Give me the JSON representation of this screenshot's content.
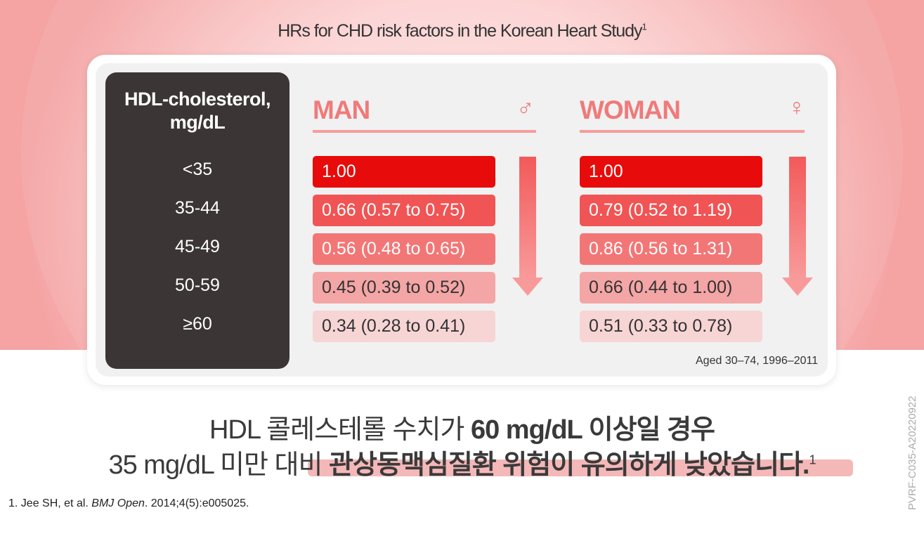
{
  "title": {
    "text": "HRs for CHD risk factors in the Korean Heart Study",
    "sup": "1"
  },
  "hdl": {
    "header_line1": "HDL-cholesterol,",
    "header_line2": "mg/dL",
    "labels": [
      "<35",
      "35-44",
      "45-49",
      "50-59",
      "≥60"
    ]
  },
  "man": {
    "title": "MAN",
    "icon": "♂",
    "values": [
      "1.00",
      "0.66 (0.57 to 0.75)",
      "0.56 (0.48 to 0.65)",
      "0.45 (0.39 to 0.52)",
      "0.34 (0.28 to 0.41)"
    ]
  },
  "woman": {
    "title": "WOMAN",
    "icon": "♀",
    "values": [
      "1.00",
      "0.79 (0.52 to 1.19)",
      "0.86 (0.56 to 1.31)",
      "0.66 (0.44 to 1.00)",
      "0.51 (0.33 to 0.78)"
    ]
  },
  "aged_note": "Aged 30–74, 1996–2011",
  "message": {
    "line1_normal": "HDL 콜레스테롤 수치가 ",
    "line1_bold": "60 mg/dL 이상일 경우",
    "line2_normal": "35 mg/dL 미만 대비 ",
    "line2_bold": "관상동맥심질환 위험이 유의하게 낮았습니다.",
    "line2_sup": "1"
  },
  "reference": {
    "prefix": "1. Jee SH, et al. ",
    "journal": "BMJ Open",
    "suffix": ". 2014;4(5):e005025."
  },
  "code": "PVRF-C035-A20220922",
  "colors": {
    "level": [
      "#e80b0b",
      "#f05454",
      "#f37676",
      "#f4a5a5",
      "#f7d5d5"
    ],
    "text_dark": "#3b3535",
    "accent": "#f07a7a"
  }
}
